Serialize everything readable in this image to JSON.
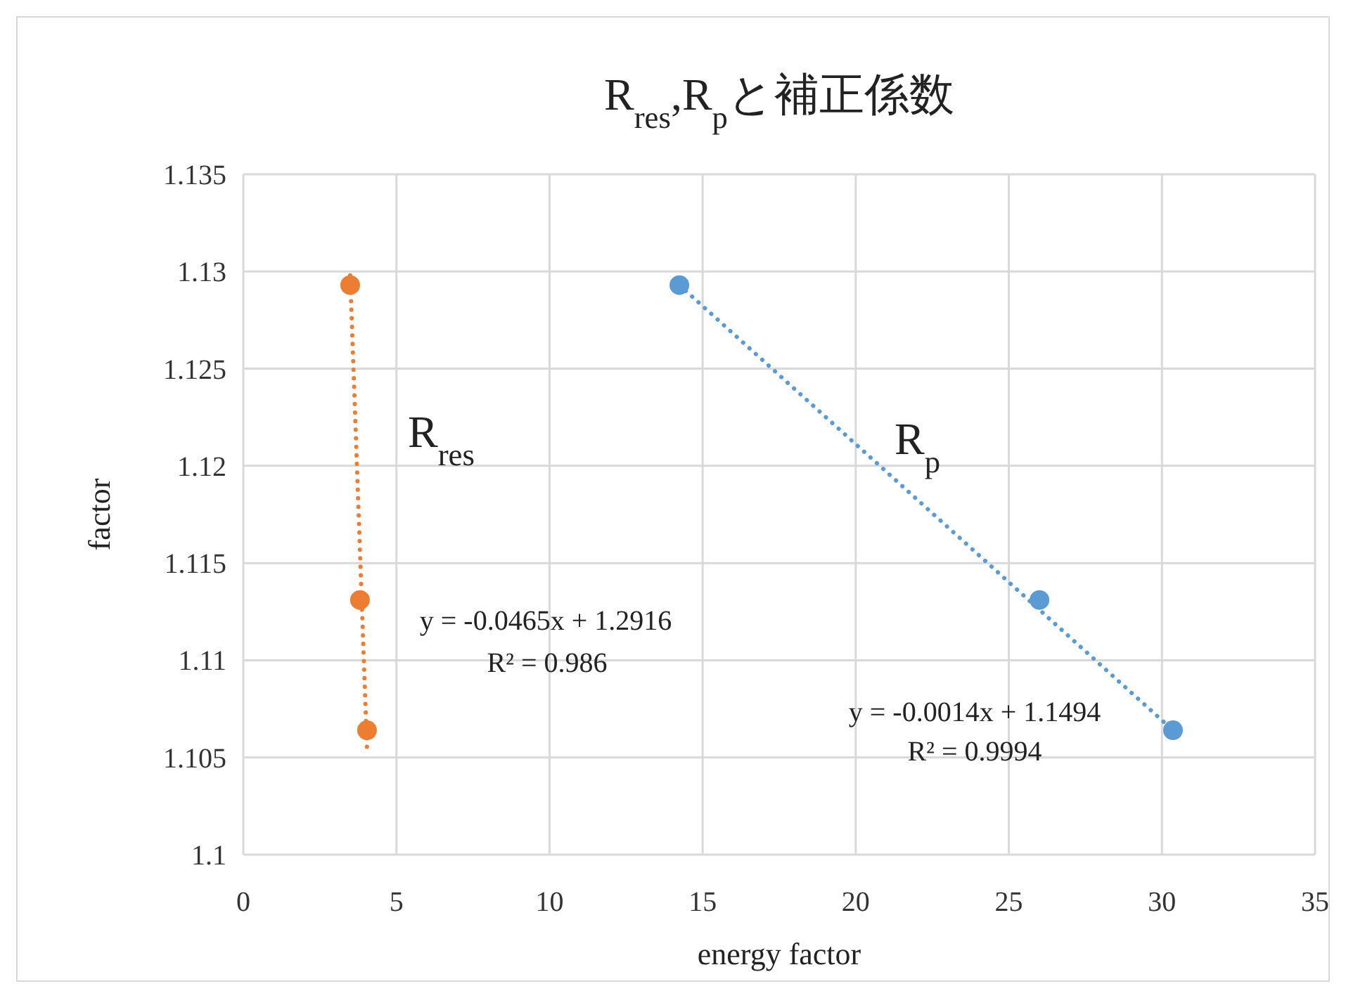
{
  "chart_data": {
    "type": "scatter",
    "title": "R$_{res}$,R$_{p}$と補正係数",
    "xlabel": "energy factor",
    "ylabel": "factor",
    "xlim": [
      0,
      35
    ],
    "xticks": [
      0,
      5,
      10,
      15,
      20,
      25,
      30,
      35
    ],
    "ylim": [
      1.1,
      1.135
    ],
    "yticks": [
      {
        "value": 1.1,
        "label": "1.1"
      },
      {
        "value": 1.105,
        "label": "1.105"
      },
      {
        "value": 1.11,
        "label": "1.11"
      },
      {
        "value": 1.115,
        "label": "1.115"
      },
      {
        "value": 1.12,
        "label": "1.12"
      },
      {
        "value": 1.125,
        "label": "1.125"
      },
      {
        "value": 1.13,
        "label": "1.13"
      },
      {
        "value": 1.135,
        "label": "1.135"
      }
    ],
    "grid": true,
    "marker": "circle",
    "series": [
      {
        "color": "#ed7d31",
        "x": [
          3.49,
          3.81,
          4.04
        ],
        "values": [
          1.1293,
          1.1131,
          1.1064
        ]
      },
      {
        "color": "#5b9bd5",
        "x": [
          14.24,
          26.0,
          30.36
        ],
        "values": [
          1.1293,
          1.1131,
          1.1064
        ]
      },
      {
        "type": "line",
        "color": "#ed7d31",
        "line_style": "dotted",
        "marker": "none",
        "x": [
          3.49,
          4.04
        ],
        "values": [
          1.1298,
          1.1054
        ]
      },
      {
        "type": "line",
        "color": "#5b9bd5",
        "line_style": "dotted",
        "marker": "none",
        "x": [
          14.24,
          30.36
        ],
        "values": [
          1.1293,
          1.1064
        ]
      }
    ],
    "annotations": [
      "R$_{res}$",
      "R$_{p}$",
      "y = -0.0465x + 1.2916",
      "R² = 0.986",
      "y = -0.0014x + 1.1494",
      "R² = 0.9994"
    ]
  }
}
